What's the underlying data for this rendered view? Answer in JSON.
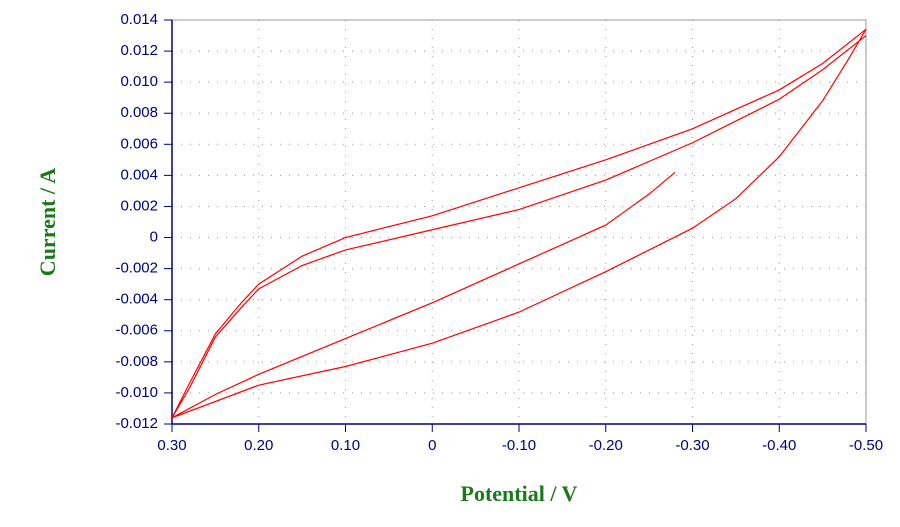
{
  "chart_data": {
    "type": "line",
    "x_label": "Potential / V",
    "y_label": "Current / A",
    "xlim": [
      0.3,
      -0.5
    ],
    "xticks": [
      {
        "value": 0.3,
        "label": "0.30"
      },
      {
        "value": 0.2,
        "label": "0.20"
      },
      {
        "value": 0.1,
        "label": "0.10"
      },
      0,
      {
        "value": -0.1,
        "label": "-0.10"
      },
      {
        "value": -0.2,
        "label": "-0.20"
      },
      {
        "value": -0.3,
        "label": "-0.30"
      },
      {
        "value": -0.4,
        "label": "-0.40"
      },
      {
        "value": -0.5,
        "label": "-0.50"
      }
    ],
    "ylim": [
      -0.012,
      0.014
    ],
    "yticks": [
      -0.012,
      {
        "value": -0.01,
        "label": "-0.010"
      },
      -0.008,
      -0.006,
      -0.004,
      -0.002,
      0,
      0.002,
      0.004,
      0.006,
      0.008,
      {
        "value": 0.01,
        "label": "0.010"
      },
      0.012,
      0.014
    ],
    "grid": true,
    "series": [
      {
        "color": "#ff0000",
        "x": [
          -0.28,
          -0.25,
          -0.2,
          -0.1,
          0,
          0.1,
          0.2,
          0.25,
          0.3,
          0.28,
          0.25,
          0.22,
          0.2,
          0.15,
          0.1,
          0,
          -0.1,
          -0.2,
          -0.3,
          -0.4,
          -0.45,
          -0.5,
          -0.48,
          -0.45,
          -0.4,
          -0.35,
          -0.3,
          -0.2,
          -0.1,
          0,
          0.1,
          0.2,
          0.3,
          0.28,
          0.25,
          0.22,
          0.2,
          0.15,
          0.1,
          0,
          -0.1,
          -0.2,
          -0.3,
          -0.4,
          -0.45,
          -0.5
        ],
        "values": [
          0.0042,
          0.0028,
          0.0008,
          -0.0017,
          -0.0042,
          -0.0065,
          -0.0088,
          -0.0101,
          -0.0116,
          -0.0094,
          -0.0062,
          -0.0042,
          -0.003,
          -0.0012,
          0.0,
          0.0014,
          0.0032,
          0.005,
          0.007,
          0.0095,
          0.0112,
          0.0134,
          0.0115,
          0.0088,
          0.0052,
          0.0025,
          0.0006,
          -0.0022,
          -0.0048,
          -0.0068,
          -0.0083,
          -0.0095,
          -0.0116,
          -0.0097,
          -0.0064,
          -0.0045,
          -0.0033,
          -0.0018,
          -0.0008,
          0.0005,
          0.0018,
          0.0037,
          0.0061,
          0.0089,
          0.0108,
          0.013
        ]
      }
    ]
  }
}
